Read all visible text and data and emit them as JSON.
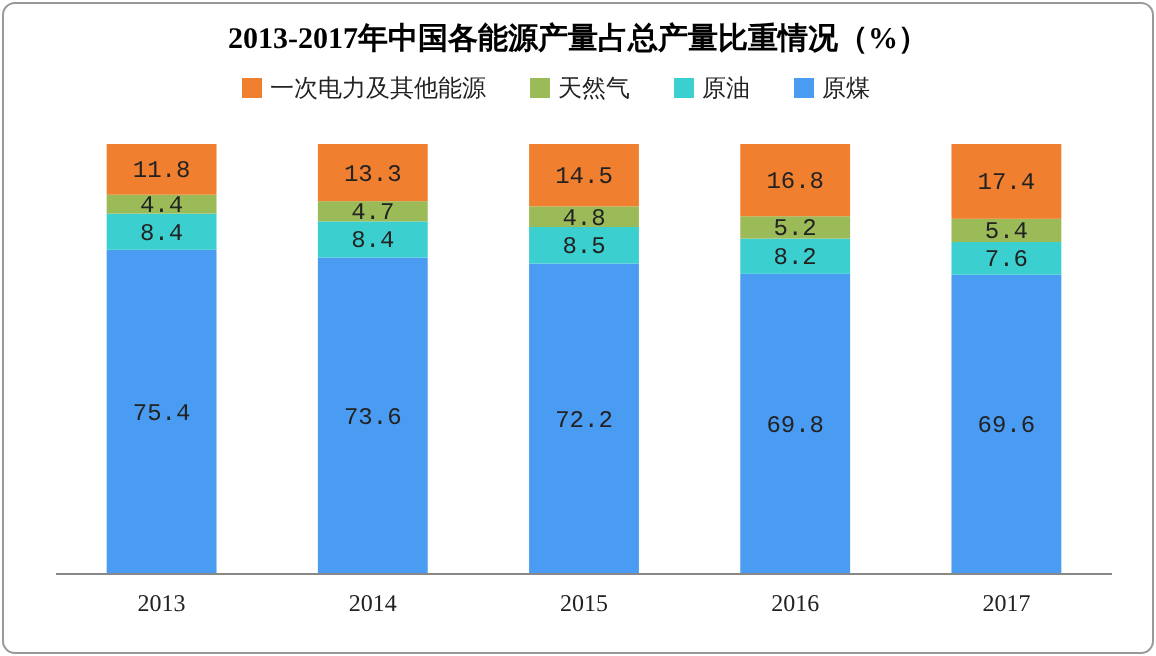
{
  "chart_data": {
    "type": "bar",
    "title": "2013-2017年中国各能源产量占总产量比重情况（%）",
    "categories": [
      "2013",
      "2014",
      "2015",
      "2016",
      "2017"
    ],
    "stacked": true,
    "data_labels": true,
    "legend": "top",
    "series": [
      {
        "name": "原煤",
        "color": "#4a9cf2",
        "values": [
          75.4,
          73.6,
          72.2,
          69.8,
          69.6
        ]
      },
      {
        "name": "原油",
        "color": "#3ccfcf",
        "values": [
          8.4,
          8.4,
          8.5,
          8.2,
          7.6
        ]
      },
      {
        "name": "天然气",
        "color": "#9bbb59",
        "values": [
          4.4,
          4.7,
          4.8,
          5.2,
          5.4
        ]
      },
      {
        "name": "一次电力及其他能源",
        "color": "#f0802f",
        "values": [
          11.8,
          13.3,
          14.5,
          16.8,
          17.4
        ]
      }
    ]
  }
}
